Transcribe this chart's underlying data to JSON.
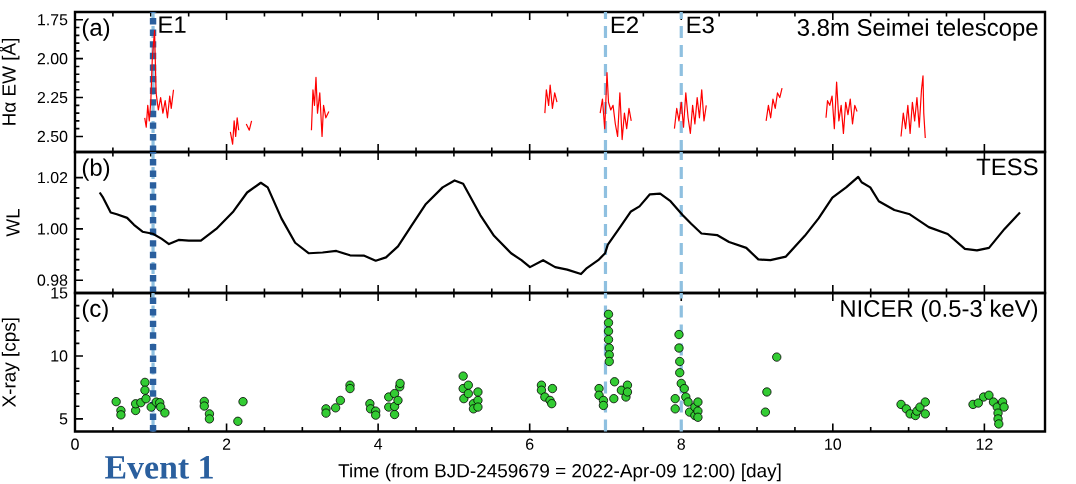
{
  "chart_data": [
    {
      "type": "line",
      "ylabel": "Hα EW [Å]",
      "color": "#ff0000",
      "tick_labels": "y",
      "xlim": [
        0,
        12.8
      ],
      "xticks": [
        0,
        2,
        4,
        6,
        8,
        10,
        12
      ],
      "ylim": [
        2.6,
        1.7
      ],
      "yticks": [
        {
          "value": 1.75,
          "label": "1.75"
        },
        {
          "value": 2.0,
          "label": "2.00"
        },
        {
          "value": 2.25,
          "label": "2.25"
        },
        {
          "value": 2.5,
          "label": "2.50"
        }
      ],
      "x": [
        0.92,
        0.94,
        0.96,
        0.98,
        1.0,
        1.02,
        1.05,
        1.07,
        1.1,
        1.13,
        1.16,
        1.19,
        1.22,
        1.25,
        1.27,
        1.3,
        1.31,
        2.05,
        2.08,
        2.1,
        2.12,
        2.14,
        2.16,
        2.2,
        2.26,
        2.3,
        2.33,
        2.5,
        3.12,
        3.14,
        3.16,
        3.18,
        3.2,
        3.23,
        3.26,
        3.28,
        3.31,
        3.35,
        4.0,
        6.2,
        6.22,
        6.25,
        6.27,
        6.3,
        6.33,
        6.36,
        6.5,
        6.93,
        6.96,
        6.99,
        7.02,
        7.04,
        7.07,
        7.1,
        7.13,
        7.16,
        7.19,
        7.22,
        7.25,
        7.28,
        7.31,
        7.34,
        7.6,
        7.91,
        7.94,
        7.97,
        8.0,
        8.03,
        8.06,
        8.09,
        8.12,
        8.15,
        8.18,
        8.21,
        8.24,
        8.27,
        8.3,
        8.33,
        8.7,
        9.12,
        9.15,
        9.18,
        9.21,
        9.24,
        9.27,
        9.3,
        9.33,
        9.6,
        9.91,
        9.93,
        9.96,
        9.99,
        10.02,
        10.05,
        10.08,
        10.11,
        10.14,
        10.17,
        10.2,
        10.23,
        10.26,
        10.29,
        10.32,
        10.6,
        10.9,
        10.93,
        10.96,
        10.99,
        11.02,
        11.05,
        11.08,
        11.11,
        11.14,
        11.17,
        11.19,
        11.2,
        11.22
      ],
      "values": [
        2.38,
        2.44,
        2.3,
        2.4,
        2.28,
        2.0,
        1.82,
        2.22,
        2.33,
        2.25,
        2.35,
        2.27,
        2.38,
        2.24,
        2.32,
        2.2,
        null,
        2.47,
        2.55,
        2.4,
        2.5,
        2.38,
        2.46,
        null,
        2.42,
        2.46,
        2.4,
        null,
        2.46,
        2.2,
        2.3,
        2.12,
        2.35,
        2.22,
        2.5,
        2.3,
        2.38,
        2.34,
        null,
        2.35,
        2.2,
        2.3,
        2.17,
        2.32,
        2.22,
        2.28,
        null,
        2.35,
        2.26,
        2.45,
        2.09,
        2.28,
        2.33,
        2.3,
        2.42,
        2.5,
        2.22,
        2.52,
        2.35,
        2.45,
        2.32,
        2.4,
        null,
        2.45,
        2.32,
        2.4,
        2.28,
        2.44,
        2.22,
        2.38,
        2.48,
        2.3,
        2.42,
        2.25,
        2.38,
        2.2,
        2.4,
        2.3,
        null,
        2.4,
        2.3,
        2.38,
        2.26,
        2.32,
        2.22,
        2.25,
        2.19,
        null,
        2.38,
        2.27,
        2.3,
        2.24,
        2.45,
        2.15,
        2.4,
        2.3,
        2.48,
        2.28,
        2.36,
        2.26,
        2.42,
        2.3,
        2.34,
        null,
        2.5,
        2.35,
        2.45,
        2.3,
        2.48,
        2.28,
        2.4,
        2.25,
        2.44,
        2.2,
        2.11,
        2.35,
        2.51
      ],
      "ref_lines": [
        {
          "axis": "x",
          "value": 1.03,
          "label": "E1",
          "color": "#8fc0e0",
          "line_style": "dashed"
        },
        {
          "axis": "x",
          "value": 1.03,
          "color": "#2a5f9e",
          "line_style": "dotted"
        },
        {
          "axis": "x",
          "value": 7.0,
          "label": "E2",
          "color": "#8fc0e0",
          "line_style": "dashed"
        },
        {
          "axis": "x",
          "value": 8.0,
          "label": "E3",
          "color": "#8fc0e0",
          "line_style": "dashed"
        }
      ],
      "annotations": [
        "(a)",
        "3.8m Seimei telescope"
      ]
    },
    {
      "type": "line",
      "ylabel": "WL",
      "color": "#000000",
      "tick_labels": "y",
      "xlim": [
        0,
        12.8
      ],
      "xticks": [
        0,
        2,
        4,
        6,
        8,
        10,
        12
      ],
      "ylim": [
        0.975,
        1.03
      ],
      "yticks": [
        {
          "value": 0.98,
          "label": "0.98"
        },
        {
          "value": 1.0,
          "label": "1.00"
        },
        {
          "value": 1.02,
          "label": "1.02"
        }
      ],
      "x": [
        0.326,
        0.371,
        0.471,
        0.552,
        0.688,
        0.778,
        0.891,
        1.027,
        1.14,
        1.24,
        1.367,
        1.502,
        1.661,
        1.864,
        2.09,
        2.271,
        2.452,
        2.543,
        2.724,
        2.905,
        3.086,
        3.267,
        3.448,
        3.629,
        3.81,
        3.968,
        4.104,
        4.262,
        4.443,
        4.624,
        4.851,
        5.009,
        5.122,
        5.348,
        5.529,
        5.755,
        5.891,
        6.004,
        6.177,
        6.336,
        6.495,
        6.677,
        6.745,
        6.904,
        6.995,
        7.031,
        7.177,
        7.336,
        7.449,
        7.586,
        7.722,
        7.858,
        8.017,
        8.131,
        8.267,
        8.472,
        8.631,
        8.858,
        9.017,
        9.176,
        9.381,
        9.63,
        9.812,
        9.994,
        10.176,
        10.335,
        10.38,
        10.494,
        10.607,
        10.812,
        11.016,
        11.266,
        11.516,
        11.743,
        11.902,
        12.061,
        12.266,
        12.47
      ],
      "values": [
        1.0142,
        1.0122,
        1.0064,
        1.0057,
        1.0043,
        1.0016,
        0.9989,
        0.9981,
        0.9962,
        0.9941,
        0.9957,
        0.9954,
        0.9954,
        1.0,
        1.0068,
        1.0142,
        1.018,
        1.0162,
        1.0041,
        0.9946,
        0.9905,
        0.9908,
        0.9914,
        0.9897,
        0.9896,
        0.9876,
        0.9889,
        0.9932,
        1.0014,
        1.0095,
        1.0162,
        1.0189,
        1.0176,
        1.0054,
        0.9973,
        0.9905,
        0.9878,
        0.9851,
        0.9878,
        0.9851,
        0.9841,
        0.9824,
        0.9845,
        0.9878,
        0.9905,
        0.9939,
        1.0,
        1.0068,
        1.0088,
        1.0135,
        1.0138,
        1.0108,
        1.0054,
        1.002,
        0.9982,
        0.9976,
        0.9949,
        0.9926,
        0.9881,
        0.9878,
        0.9892,
        0.9973,
        1.0041,
        1.0122,
        1.0162,
        1.0203,
        1.0182,
        1.0162,
        1.0108,
        1.0074,
        1.0057,
        1.0007,
        0.998,
        0.9922,
        0.9916,
        0.9926,
        1.0,
        1.0064
      ],
      "ref_lines": [
        {
          "axis": "x",
          "value": 1.03,
          "color": "#8fc0e0",
          "line_style": "dashed"
        },
        {
          "axis": "x",
          "value": 1.03,
          "color": "#2a5f9e",
          "line_style": "dotted"
        },
        {
          "axis": "x",
          "value": 7.0,
          "color": "#8fc0e0",
          "line_style": "dashed"
        },
        {
          "axis": "x",
          "value": 8.0,
          "color": "#8fc0e0",
          "line_style": "dashed"
        }
      ],
      "annotations": [
        "(b)",
        "TESS"
      ]
    },
    {
      "type": "scatter",
      "ylabel": "X-ray [cps]",
      "xlabel": "Time (from BJD-2459679  = 2022-Apr-09 12:00) [day]",
      "color": "#33cc33",
      "marker": "circle",
      "xlim": [
        0,
        12.8
      ],
      "xticks": [
        0,
        2,
        4,
        6,
        8,
        10,
        12
      ],
      "ylim": [
        4,
        15
      ],
      "yticks": [
        5,
        10,
        15
      ],
      "x": [
        0.543,
        0.606,
        0.606,
        0.8,
        0.8,
        0.869,
        0.923,
        0.923,
        0.937,
        1.005,
        1.072,
        1.118,
        1.131,
        1.186,
        1.706,
        1.706,
        1.774,
        1.774,
        2.149,
        2.217,
        3.312,
        3.312,
        3.439,
        3.502,
        3.629,
        3.629,
        3.891,
        3.9,
        3.968,
        3.968,
        4.14,
        4.14,
        4.217,
        4.217,
        4.217,
        4.262,
        4.285,
        4.29,
        5.122,
        5.122,
        5.131,
        5.19,
        5.19,
        5.258,
        5.258,
        5.317,
        5.317,
        5.317,
        6.155,
        6.155,
        6.2,
        6.268,
        6.291,
        6.3,
        6.915,
        6.915,
        6.973,
        6.973,
        7.04,
        7.04,
        7.04,
        7.04,
        7.05,
        7.05,
        7.05,
        7.11,
        7.12,
        7.21,
        7.27,
        7.29,
        7.29,
        7.92,
        7.92,
        7.97,
        7.97,
        7.98,
        7.98,
        8.0,
        8.04,
        8.06,
        8.09,
        8.11,
        8.18,
        8.18,
        8.22,
        8.22,
        8.22,
        9.11,
        9.13,
        9.26,
        10.9,
        10.97,
        11.02,
        11.09,
        11.11,
        11.15,
        11.22,
        11.22,
        11.85,
        11.92,
        11.99,
        12.06,
        12.12,
        12.17,
        12.18,
        12.18,
        12.19,
        12.24,
        12.26
      ],
      "values": [
        6.37,
        5.67,
        5.32,
        5.67,
        6.2,
        6.29,
        7.9,
        7.28,
        6.6,
        5.94,
        6.34,
        6.29,
        5.94,
        5.48,
        6.39,
        6.02,
        5.4,
        5.0,
        4.81,
        6.37,
        5.8,
        5.46,
        5.88,
        6.47,
        7.68,
        7.41,
        6.21,
        5.8,
        5.62,
        5.3,
        5.94,
        6.74,
        5.35,
        5.99,
        7.01,
        6.47,
        7.55,
        7.82,
        8.4,
        7.41,
        6.61,
        7.68,
        7.01,
        6.21,
        5.8,
        6.47,
        5.94,
        7.14,
        7.68,
        7.28,
        6.74,
        6.47,
        6.21,
        7.41,
        7.41,
        6.88,
        6.47,
        6.07,
        13.31,
        12.64,
        11.97,
        11.3,
        10.63,
        10.09,
        9.56,
        6.61,
        7.95,
        7.28,
        6.74,
        7.68,
        7.14,
        6.61,
        5.8,
        11.7,
        10.63,
        9.56,
        8.67,
        7.82,
        7.41,
        6.74,
        6.34,
        5.54,
        5.94,
        5.27,
        6.34,
        5.62,
        5.13,
        5.54,
        7.14,
        9.91,
        6.15,
        5.8,
        5.4,
        5.27,
        5.62,
        5.94,
        6.34,
        5.4,
        6.15,
        6.26,
        6.74,
        6.88,
        6.34,
        5.94,
        5.46,
        5.0,
        4.6,
        6.34,
        5.94
      ],
      "ref_lines": [
        {
          "axis": "x",
          "value": 1.03,
          "color": "#8fc0e0",
          "line_style": "dashed"
        },
        {
          "axis": "x",
          "value": 1.03,
          "color": "#2a5f9e",
          "line_style": "dotted"
        },
        {
          "axis": "x",
          "value": 7.0,
          "color": "#8fc0e0",
          "line_style": "dashed"
        },
        {
          "axis": "x",
          "value": 8.0,
          "color": "#8fc0e0",
          "line_style": "dashed"
        }
      ],
      "annotations": [
        "(c)",
        "NICER (0.5-3 keV)",
        "Event 1"
      ]
    }
  ]
}
